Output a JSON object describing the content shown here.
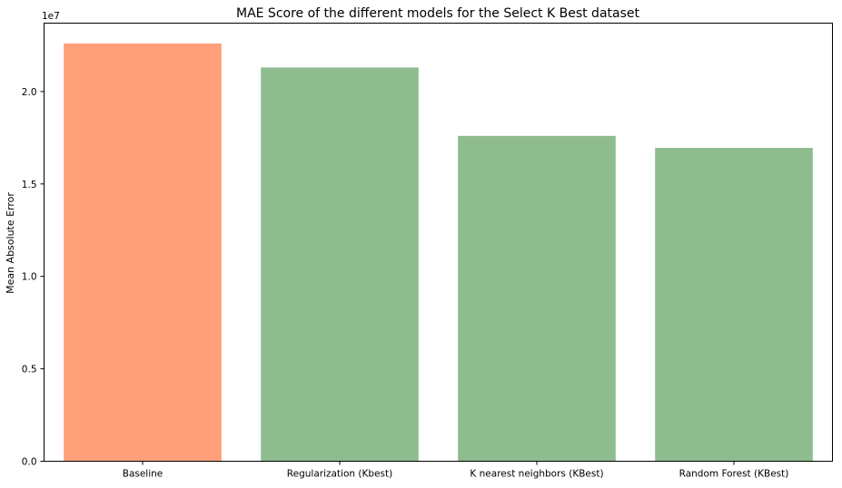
{
  "chart_data": {
    "type": "bar",
    "title": "MAE Score of the different models for the Select K Best dataset",
    "xlabel": "",
    "ylabel": "Mean Absolute Error",
    "offset_label": "1e7",
    "scale": 10000000,
    "categories": [
      "Baseline",
      "Regularization (Kbest)",
      "K nearest neighbors (KBest)",
      "Random Forest (KBest)"
    ],
    "values": [
      22600000,
      21300000,
      17600000,
      16950000
    ],
    "colors": [
      "#ffa07a",
      "#8fbc8f",
      "#8fbc8f",
      "#8fbc8f"
    ],
    "ylim": [
      0,
      23700000
    ],
    "yticks": [
      0,
      5000000,
      10000000,
      15000000,
      20000000
    ],
    "ytick_labels": [
      "0.0",
      "0.5",
      "1.0",
      "1.5",
      "2.0"
    ],
    "grid": false,
    "legend": "none"
  }
}
